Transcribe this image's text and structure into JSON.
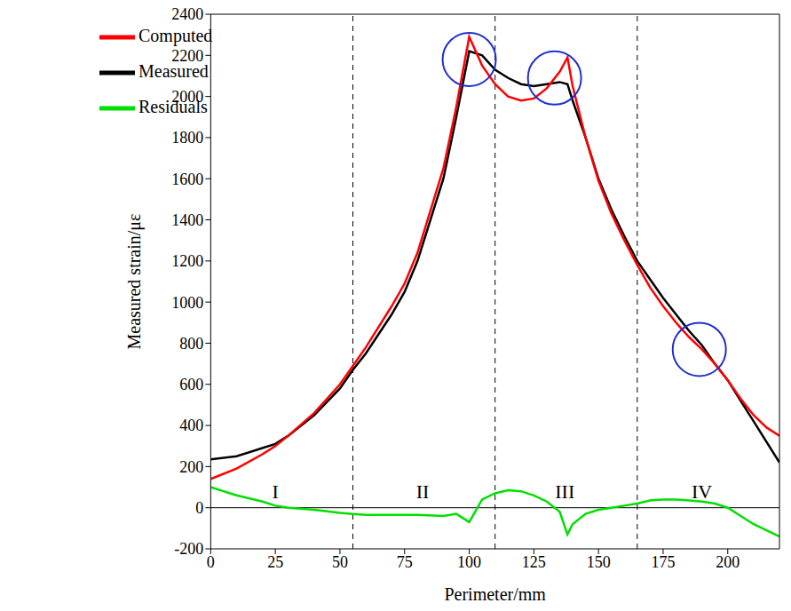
{
  "chart_data": {
    "type": "line",
    "x_label": "Perimeter/mm",
    "y_label": "Measured strain/με",
    "x": [
      0,
      10,
      20,
      25,
      30,
      40,
      50,
      55,
      60,
      70,
      75,
      80,
      90,
      95,
      100,
      105,
      110,
      115,
      120,
      125,
      130,
      135,
      138,
      140,
      145,
      150,
      155,
      160,
      165,
      170,
      175,
      180,
      185,
      190,
      195,
      200,
      205,
      210,
      215,
      220
    ],
    "series": [
      {
        "name": "Measured",
        "color": "#000000",
        "values": [
          235,
          250,
          290,
          310,
          350,
          450,
          580,
          670,
          750,
          940,
          1050,
          1200,
          1600,
          1900,
          2220,
          2200,
          2130,
          2090,
          2060,
          2050,
          2060,
          2070,
          2060,
          1980,
          1800,
          1600,
          1450,
          1320,
          1200,
          1110,
          1020,
          940,
          860,
          790,
          700,
          620,
          520,
          420,
          320,
          220
        ]
      },
      {
        "name": "Computed",
        "color": "#ff0000",
        "values": [
          140,
          190,
          260,
          300,
          350,
          460,
          600,
          690,
          780,
          980,
          1090,
          1240,
          1650,
          1950,
          2290,
          2150,
          2060,
          2000,
          1980,
          1990,
          2040,
          2120,
          2190,
          2050,
          1800,
          1590,
          1430,
          1300,
          1180,
          1070,
          980,
          900,
          830,
          770,
          700,
          620,
          530,
          450,
          390,
          350
        ]
      },
      {
        "name": "Residuals",
        "color": "#00e000",
        "values": [
          100,
          60,
          30,
          10,
          0,
          -10,
          -25,
          -30,
          -35,
          -35,
          -35,
          -35,
          -40,
          -30,
          -70,
          40,
          70,
          85,
          80,
          60,
          30,
          -20,
          -130,
          -80,
          -30,
          -10,
          0,
          10,
          20,
          35,
          40,
          40,
          35,
          30,
          20,
          0,
          -40,
          -80,
          -110,
          -140
        ]
      }
    ],
    "xlim": [
      0,
      220
    ],
    "ylim": [
      -200,
      2400
    ],
    "xticks": [
      0,
      25,
      50,
      75,
      100,
      125,
      150,
      175,
      200
    ],
    "yticks": [
      -200,
      0,
      200,
      400,
      600,
      800,
      1000,
      1200,
      1400,
      1600,
      1800,
      2000,
      2200,
      2400
    ],
    "legend": "upper left",
    "grid": false,
    "vlines": [
      55,
      110,
      165
    ],
    "hlines": [
      0
    ],
    "region_labels": [
      {
        "text": "I",
        "x": 25,
        "y": 80
      },
      {
        "text": "II",
        "x": 82,
        "y": 80
      },
      {
        "text": "III",
        "x": 137,
        "y": 80
      },
      {
        "text": "IV",
        "x": 190,
        "y": 80
      }
    ],
    "circles": [
      {
        "x": 100,
        "y": 2180
      },
      {
        "x": 133,
        "y": 2090
      },
      {
        "x": 189,
        "y": 770
      }
    ]
  }
}
